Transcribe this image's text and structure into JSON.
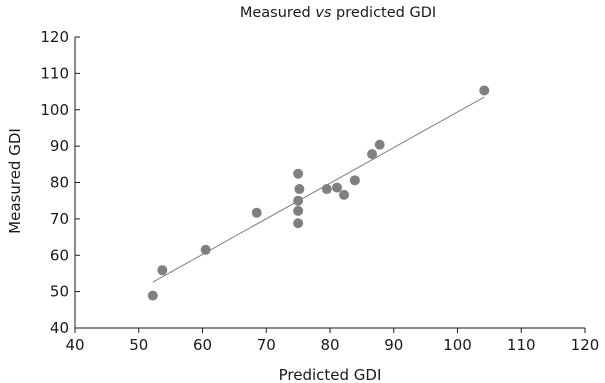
{
  "chart_data": {
    "type": "scatter",
    "title": {
      "before": "Measured ",
      "italic": "vs",
      "after": " predicted GDI"
    },
    "xlabel": "Predicted GDI",
    "ylabel": "Measured GDI",
    "xlim": [
      40,
      120
    ],
    "ylim": [
      40,
      120
    ],
    "xticks": [
      "40",
      "50",
      "60",
      "70",
      "80",
      "90",
      "100",
      "110",
      "120"
    ],
    "yticks": [
      "40",
      "50",
      "60",
      "70",
      "80",
      "90",
      "100",
      "110",
      "120"
    ],
    "grid": false,
    "legend": "none",
    "marker_color": "#808080",
    "line_color": "#7f7f7f",
    "points": [
      {
        "x": 52.2,
        "y": 48.9
      },
      {
        "x": 53.7,
        "y": 55.9
      },
      {
        "x": 60.5,
        "y": 61.5
      },
      {
        "x": 68.5,
        "y": 71.7
      },
      {
        "x": 75.0,
        "y": 82.4
      },
      {
        "x": 75.2,
        "y": 78.2
      },
      {
        "x": 75.0,
        "y": 75.0
      },
      {
        "x": 75.0,
        "y": 72.2
      },
      {
        "x": 75.0,
        "y": 68.8
      },
      {
        "x": 79.5,
        "y": 78.2
      },
      {
        "x": 81.1,
        "y": 78.6
      },
      {
        "x": 82.2,
        "y": 76.6
      },
      {
        "x": 83.9,
        "y": 80.6
      },
      {
        "x": 86.6,
        "y": 87.8
      },
      {
        "x": 87.8,
        "y": 90.4
      },
      {
        "x": 104.2,
        "y": 105.3
      }
    ],
    "trendline": [
      {
        "x": 52.2,
        "y": 52.6
      },
      {
        "x": 104.2,
        "y": 103.5
      }
    ]
  }
}
